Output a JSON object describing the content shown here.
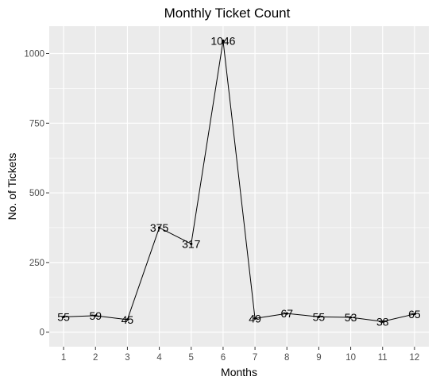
{
  "chart_data": {
    "type": "line",
    "title": "Monthly Ticket Count",
    "xlabel": "Months",
    "ylabel": "No. of Tickets",
    "x": [
      1,
      2,
      3,
      4,
      5,
      6,
      7,
      8,
      9,
      10,
      11,
      12
    ],
    "values": [
      55,
      59,
      45,
      375,
      317,
      1046,
      49,
      67,
      55,
      53,
      38,
      65
    ],
    "data_labels": [
      "55",
      "59",
      "45",
      "375",
      "317",
      "1046",
      "49",
      "67",
      "55",
      "53",
      "38",
      "65"
    ],
    "x_ticks": [
      "1",
      "2",
      "3",
      "4",
      "5",
      "6",
      "7",
      "8",
      "9",
      "10",
      "11",
      "12"
    ],
    "y_ticks": [
      0,
      250,
      500,
      750,
      1000
    ],
    "y_tick_labels": [
      "0",
      "250",
      "500",
      "750",
      "1000"
    ],
    "xlim": [
      0.55,
      12.45
    ],
    "ylim": [
      -52.3,
      1098.3
    ],
    "grid": true,
    "legend": "none",
    "colors": {
      "panel_background": "#ebebeb",
      "grid_major": "#ffffff",
      "line": "#000000",
      "tick_text": "#4d4d4d"
    }
  }
}
